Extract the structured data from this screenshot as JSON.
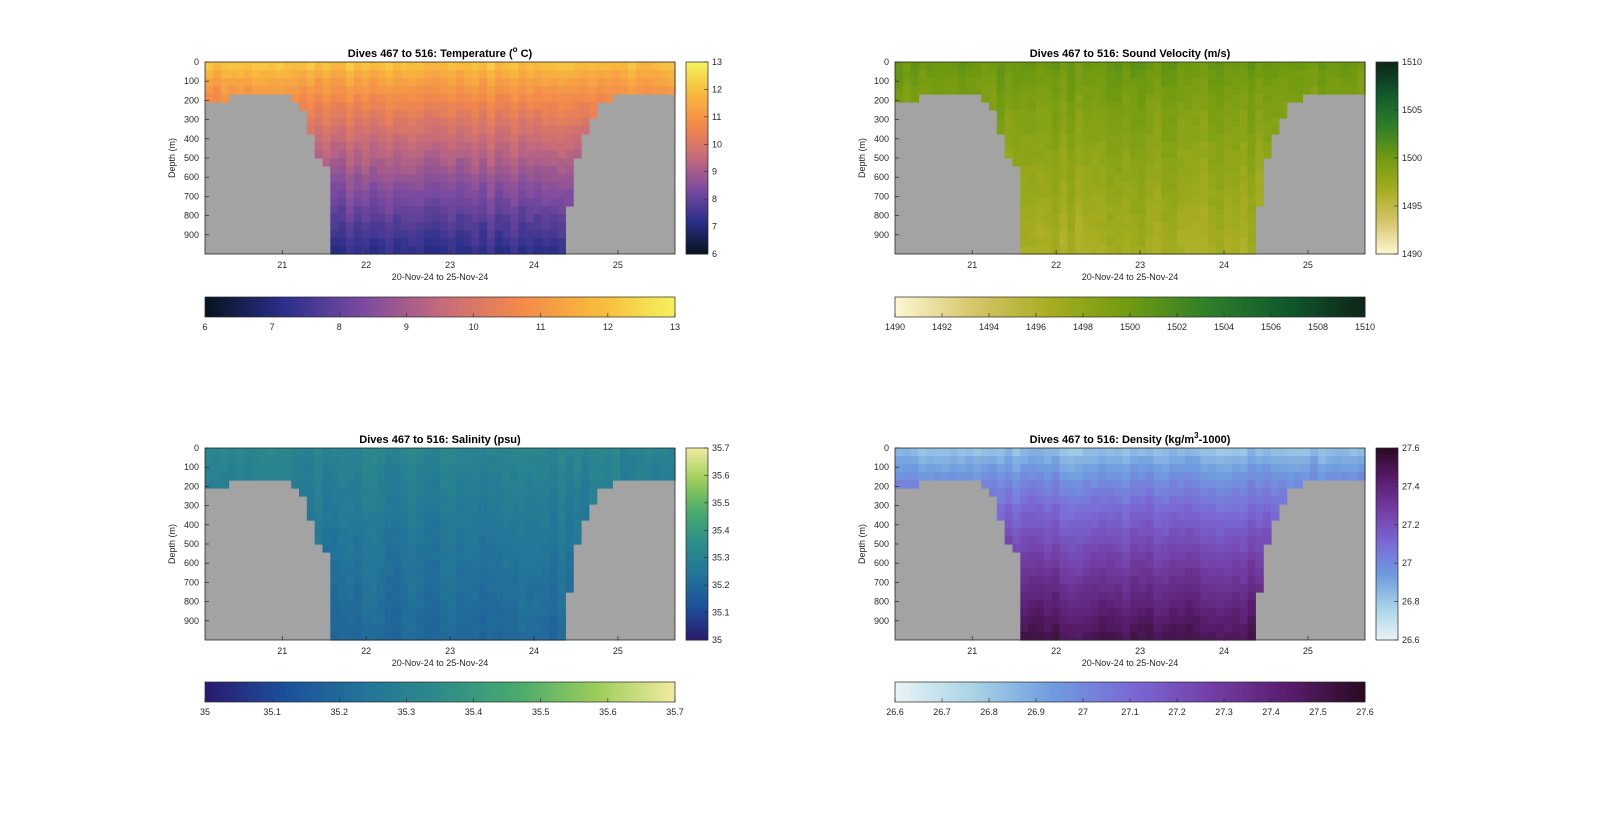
{
  "chart_data": [
    {
      "type": "heatmap",
      "title_pre": "Dives 467 to 516: Temperature (",
      "title_sup": "o",
      "title_post": " C)",
      "xlabel": "20-Nov-24 to 25-Nov-24",
      "ylabel": "Depth (m)",
      "xticks": [
        "21",
        "22",
        "23",
        "24",
        "25"
      ],
      "yticks": [
        "0",
        "100",
        "200",
        "300",
        "400",
        "500",
        "600",
        "700",
        "800",
        "900"
      ],
      "ylim": [
        0,
        1000
      ],
      "clim": [
        6,
        13
      ],
      "cbar_ticks": [
        "6",
        "7",
        "8",
        "9",
        "10",
        "11",
        "12",
        "13"
      ],
      "hbar_ticks": [
        "6",
        "7",
        "8",
        "9",
        "10",
        "11",
        "12",
        "13"
      ],
      "colormap": [
        "#06131f",
        "#2a2f8a",
        "#7a4aa0",
        "#c46a7c",
        "#f3884b",
        "#f8b93c",
        "#f4f25c"
      ],
      "surface_value": 12.2,
      "deep_value": 7.2
    },
    {
      "type": "heatmap",
      "title_pre": "Dives 467 to 516: Sound Velocity (m/s)",
      "title_sup": "",
      "title_post": "",
      "xlabel": "20-Nov-24 to 25-Nov-24",
      "ylabel": "Depth (m)",
      "xticks": [
        "21",
        "22",
        "23",
        "24",
        "25"
      ],
      "yticks": [
        "0",
        "100",
        "200",
        "300",
        "400",
        "500",
        "600",
        "700",
        "800",
        "900"
      ],
      "ylim": [
        0,
        1000
      ],
      "clim": [
        1490,
        1510
      ],
      "cbar_ticks": [
        "1490",
        "1495",
        "1500",
        "1505",
        "1510"
      ],
      "hbar_ticks": [
        "1490",
        "1492",
        "1494",
        "1496",
        "1498",
        "1500",
        "1502",
        "1504",
        "1506",
        "1508",
        "1510"
      ],
      "colormap": [
        "#fdf8d2",
        "#d6c56a",
        "#a6ad1f",
        "#6f9a10",
        "#2e7f2a",
        "#10592c",
        "#0f2418"
      ],
      "surface_value": 1500.5,
      "deep_value": 1496.5
    },
    {
      "type": "heatmap",
      "title_pre": "Dives 467 to 516: Salinity (psu)",
      "title_sup": "",
      "title_post": "",
      "xlabel": "20-Nov-24 to 25-Nov-24",
      "ylabel": "Depth (m)",
      "xticks": [
        "21",
        "22",
        "23",
        "24",
        "25"
      ],
      "yticks": [
        "0",
        "100",
        "200",
        "300",
        "400",
        "500",
        "600",
        "700",
        "800",
        "900"
      ],
      "ylim": [
        0,
        1000
      ],
      "clim": [
        35,
        35.7
      ],
      "cbar_ticks": [
        "35",
        "35.1",
        "35.2",
        "35.3",
        "35.4",
        "35.5",
        "35.6",
        "35.7"
      ],
      "hbar_ticks": [
        "35",
        "35.1",
        "35.2",
        "35.3",
        "35.4",
        "35.5",
        "35.6",
        "35.7"
      ],
      "colormap": [
        "#2a1a6e",
        "#1d4f9a",
        "#22739a",
        "#2e8c8a",
        "#4aaa6e",
        "#9ccd5a",
        "#f2eba0"
      ],
      "surface_value": 35.32,
      "deep_value": 35.2
    },
    {
      "type": "heatmap",
      "title_pre": "Dives 467 to 516: Density (kg/m",
      "title_sup": "3",
      "title_post": "-1000)",
      "xlabel": "20-Nov-24 to 25-Nov-24",
      "ylabel": "Depth (m)",
      "xticks": [
        "21",
        "22",
        "23",
        "24",
        "25"
      ],
      "yticks": [
        "0",
        "100",
        "200",
        "300",
        "400",
        "500",
        "600",
        "700",
        "800",
        "900"
      ],
      "ylim": [
        0,
        1000
      ],
      "clim": [
        26.6,
        27.6
      ],
      "cbar_ticks": [
        "26.6",
        "26.8",
        "27",
        "27.2",
        "27.4",
        "27.6"
      ],
      "hbar_ticks": [
        "26.6",
        "26.7",
        "26.8",
        "26.9",
        "27",
        "27.1",
        "27.2",
        "27.3",
        "27.4",
        "27.5",
        "27.6"
      ],
      "colormap": [
        "#eaf4f5",
        "#a9d3e6",
        "#6f9ddf",
        "#7a6ad6",
        "#7440a8",
        "#5a1d6e",
        "#2a0a22"
      ],
      "surface_value": 26.8,
      "deep_value": 27.5
    }
  ]
}
